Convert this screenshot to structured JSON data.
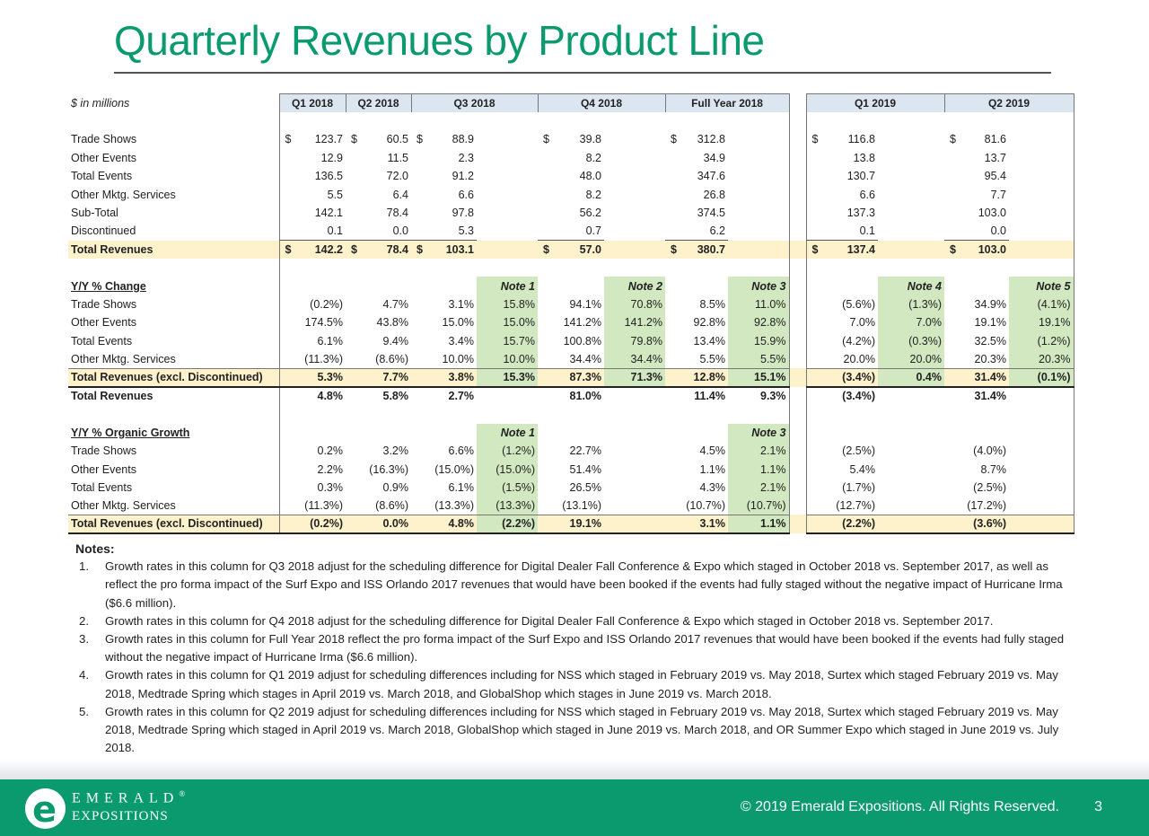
{
  "title": "Quarterly Revenues by Product Line",
  "units_label": "$ in millions",
  "headers": [
    "Q1 2018",
    "Q2 2018",
    "Q3 2018",
    "Q4 2018",
    "Full Year 2018",
    "Q1 2019",
    "Q2 2019"
  ],
  "revenue_rows": [
    {
      "label": "Trade Shows",
      "q1": "123.7",
      "q2": "60.5",
      "q3": "88.9",
      "q4": "39.8",
      "fy": "312.8",
      "q119": "116.8",
      "q219": "81.6",
      "dollar": true
    },
    {
      "label": "Other Events",
      "q1": "12.9",
      "q2": "11.5",
      "q3": "2.3",
      "q4": "8.2",
      "fy": "34.9",
      "q119": "13.8",
      "q219": "13.7"
    },
    {
      "label": "Total Events",
      "q1": "136.5",
      "q2": "72.0",
      "q3": "91.2",
      "q4": "48.0",
      "fy": "347.6",
      "q119": "130.7",
      "q219": "95.4"
    },
    {
      "label": "Other Mktg. Services",
      "q1": "5.5",
      "q2": "6.4",
      "q3": "6.6",
      "q4": "8.2",
      "fy": "26.8",
      "q119": "6.6",
      "q219": "7.7"
    },
    {
      "label": "Sub-Total",
      "q1": "142.1",
      "q2": "78.4",
      "q3": "97.8",
      "q4": "56.2",
      "fy": "374.5",
      "q119": "137.3",
      "q219": "103.0"
    },
    {
      "label": "Discontinued",
      "q1": "0.1",
      "q2": "0.0",
      "q3": "5.3",
      "q4": "0.7",
      "fy": "6.2",
      "q119": "0.1",
      "q219": "0.0"
    },
    {
      "label": "Total Revenues",
      "q1": "142.2",
      "q2": "78.4",
      "q3": "103.1",
      "q4": "57.0",
      "fy": "380.7",
      "q119": "137.4",
      "q219": "103.0",
      "dollar": true
    }
  ],
  "currency_symbol": "$",
  "yy_change": {
    "label": "Y/Y % Change",
    "notes": [
      "Note 1",
      "Note 2",
      "Note 3",
      "Note 4",
      "Note 5"
    ],
    "rows": [
      {
        "label": "Trade Shows",
        "v": [
          "(0.2%)",
          "4.7%",
          "3.1%",
          "15.8%",
          "94.1%",
          "70.8%",
          "8.5%",
          "11.0%",
          "(5.6%)",
          "(1.3%)",
          "34.9%",
          "(4.1%)"
        ]
      },
      {
        "label": "Other Events",
        "v": [
          "174.5%",
          "43.8%",
          "15.0%",
          "15.0%",
          "141.2%",
          "141.2%",
          "92.8%",
          "92.8%",
          "7.0%",
          "7.0%",
          "19.1%",
          "19.1%"
        ]
      },
      {
        "label": "Total Events",
        "v": [
          "6.1%",
          "9.4%",
          "3.4%",
          "15.7%",
          "100.8%",
          "79.8%",
          "13.4%",
          "15.9%",
          "(4.2%)",
          "(0.3%)",
          "32.5%",
          "(1.2%)"
        ]
      },
      {
        "label": "Other Mktg. Services",
        "v": [
          "(11.3%)",
          "(8.6%)",
          "10.0%",
          "10.0%",
          "34.4%",
          "34.4%",
          "5.5%",
          "5.5%",
          "20.0%",
          "20.0%",
          "20.3%",
          "20.3%"
        ]
      },
      {
        "label": "Total Revenues (excl. Discontinued)",
        "v": [
          "5.3%",
          "7.7%",
          "3.8%",
          "15.3%",
          "87.3%",
          "71.3%",
          "12.8%",
          "15.1%",
          "(3.4%)",
          "0.4%",
          "31.4%",
          "(0.1%)"
        ]
      },
      {
        "label": "Total Revenues",
        "v": [
          "4.8%",
          "5.8%",
          "2.7%",
          "",
          "81.0%",
          "",
          "11.4%",
          "9.3%",
          "(3.4%)",
          "",
          "31.4%",
          ""
        ]
      }
    ]
  },
  "organic": {
    "label": "Y/Y % Organic Growth",
    "notes": [
      "Note 1",
      "Note 3"
    ],
    "rows": [
      {
        "label": "Trade Shows",
        "v": [
          "0.2%",
          "3.2%",
          "6.6%",
          "(1.2%)",
          "22.7%",
          "",
          "4.5%",
          "2.1%",
          "(2.5%)",
          "",
          "(4.0%)",
          ""
        ]
      },
      {
        "label": "Other Events",
        "v": [
          "2.2%",
          "(16.3%)",
          "(15.0%)",
          "(15.0%)",
          "51.4%",
          "",
          "1.1%",
          "1.1%",
          "5.4%",
          "",
          "8.7%",
          ""
        ]
      },
      {
        "label": "Total Events",
        "v": [
          "0.3%",
          "0.9%",
          "6.1%",
          "(1.5%)",
          "26.5%",
          "",
          "4.3%",
          "2.1%",
          "(1.7%)",
          "",
          "(2.5%)",
          ""
        ]
      },
      {
        "label": "Other Mktg. Services",
        "v": [
          "(11.3%)",
          "(8.6%)",
          "(13.3%)",
          "(13.3%)",
          "(13.1%)",
          "",
          "(10.7%)",
          "(10.7%)",
          "(12.7%)",
          "",
          "(17.2%)",
          ""
        ]
      },
      {
        "label": "Total Revenues (excl. Discontinued)",
        "v": [
          "(0.2%)",
          "0.0%",
          "4.8%",
          "(2.2%)",
          "19.1%",
          "",
          "3.1%",
          "1.1%",
          "(2.2%)",
          "",
          "(3.6%)",
          ""
        ]
      }
    ]
  },
  "notes": {
    "title": "Notes:",
    "items": [
      {
        "num": "1.",
        "text": "Growth rates in this column for Q3 2018 adjust for the scheduling difference for Digital Dealer Fall Conference & Expo which staged in October 2018 vs. September 2017, as well as reflect the pro forma impact of the Surf Expo and ISS Orlando 2017 revenues that would have been booked if the events had fully staged without the negative impact of Hurricane Irma ($6.6 million)."
      },
      {
        "num": "2.",
        "text": "Growth rates in this column for Q4 2018 adjust for the scheduling difference for Digital Dealer Fall Conference & Expo which staged in October 2018 vs. September 2017."
      },
      {
        "num": "3.",
        "text": "Growth rates in this column for Full Year 2018 reflect the pro forma impact of the Surf Expo and ISS Orlando 2017 revenues that would have been booked if the events had fully staged without the negative impact of Hurricane Irma ($6.6 million)."
      },
      {
        "num": "4.",
        "text": "Growth rates in this column for Q1 2019 adjust for scheduling differences including for NSS which staged in February 2019 vs. May 2018, Surtex which staged February 2019 vs. May 2018, Medtrade Spring which stages in April 2019 vs. March 2018, and GlobalShop which stages in June 2019 vs. March 2018."
      },
      {
        "num": "5.",
        "text": "Growth rates in this column for Q2 2019 adjust for scheduling differences including for NSS which staged in February 2019 vs. May 2018, Surtex which staged February 2019 vs. May 2018, Medtrade Spring which staged in April 2019 vs. March 2018, GlobalShop which staged in June 2019 vs. March 2018, and OR Summer Expo which staged in June 2019 vs. July 2018."
      }
    ]
  },
  "footer": {
    "logo_line1": "EMERALD",
    "logo_registered": "®",
    "logo_line2": "EXPOSITIONS",
    "logo_mark": "e",
    "copyright": "© 2019 Emerald Expositions. All Rights Reserved.",
    "page": "3",
    "brand_color": "#0a9a6e"
  }
}
